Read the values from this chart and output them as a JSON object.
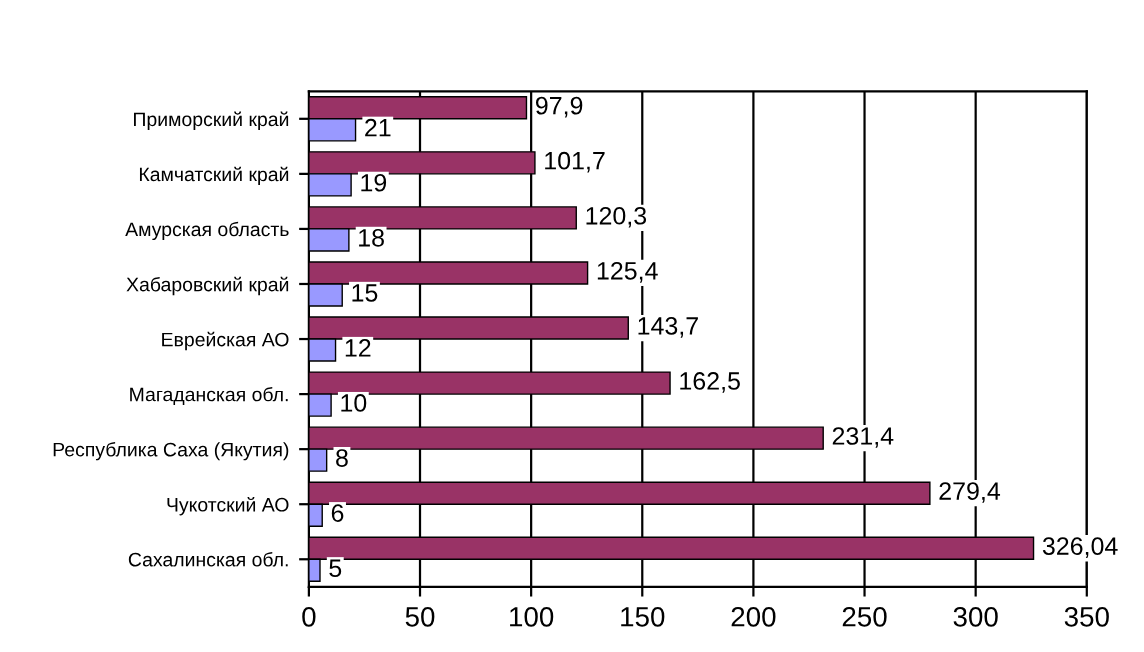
{
  "chart_data": {
    "type": "bar",
    "orientation": "horizontal",
    "categories": [
      "Приморский край",
      "Камчатский край",
      "Амурская область",
      "Хабаровский край",
      "Еврейская АО",
      "Магаданская обл.",
      "Республика Саха (Якутия)",
      "Чукотский АО",
      "Сахалинская обл."
    ],
    "series": [
      {
        "color": "#993366",
        "values": [
          97.9,
          101.7,
          120.3,
          125.4,
          143.7,
          162.5,
          231.4,
          279.4,
          326.04
        ],
        "value_labels": [
          "97,9",
          "101,7",
          "120,3",
          "125,4",
          "143,7",
          "162,5",
          "231,4",
          "279,4",
          "326,04"
        ]
      },
      {
        "color": "#9999ff",
        "values": [
          21,
          19,
          18,
          15,
          12,
          10,
          8,
          6,
          5
        ],
        "value_labels": [
          "21",
          "19",
          "18",
          "15",
          "12",
          "10",
          "8",
          "6",
          "5"
        ]
      }
    ],
    "xlim": [
      0,
      350
    ],
    "xticks": [
      0,
      50,
      100,
      150,
      200,
      250,
      300,
      350
    ],
    "grid": "x",
    "legend": false
  }
}
